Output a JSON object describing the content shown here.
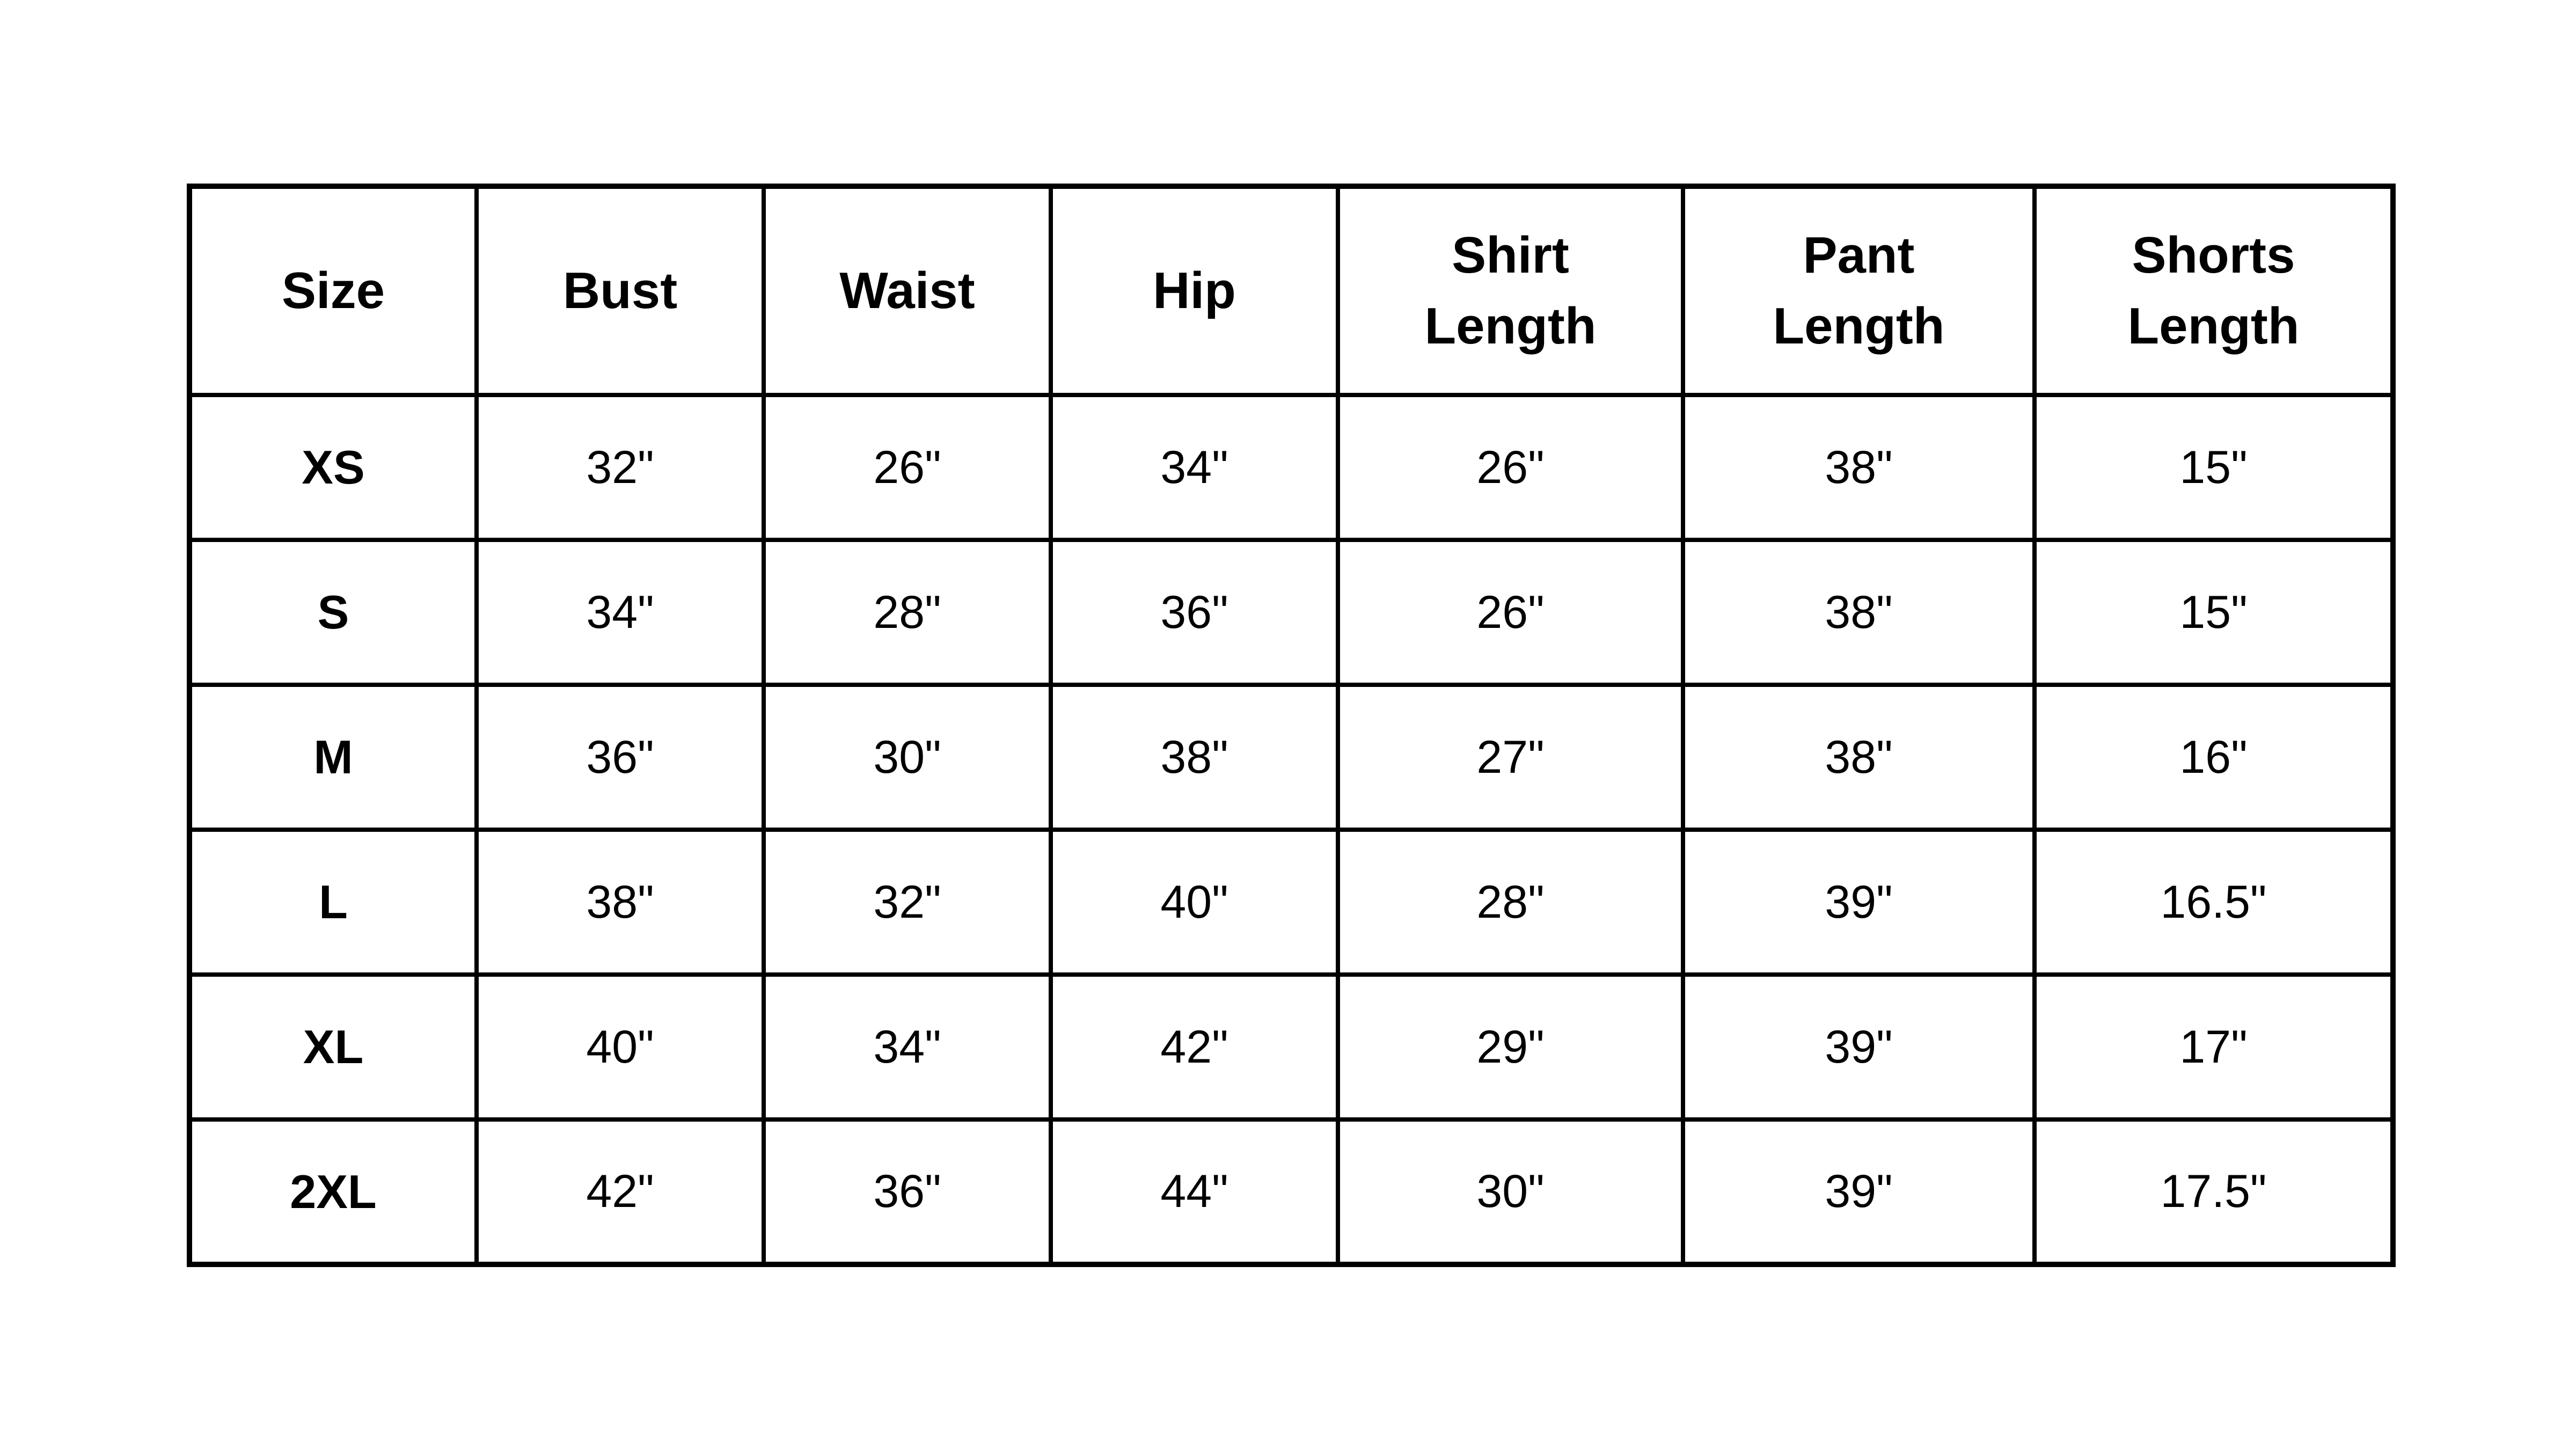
{
  "colors": {
    "text": "#000000",
    "border": "#000000",
    "background": "#ffffff"
  },
  "chart_data": {
    "type": "table",
    "columns": [
      "Size",
      "Bust",
      "Waist",
      "Hip",
      "Shirt Length",
      "Pant Length",
      "Shorts Length"
    ],
    "rows": [
      [
        "XS",
        "32\"",
        "26\"",
        "34\"",
        "26\"",
        "38\"",
        "15\""
      ],
      [
        "S",
        "34\"",
        "28\"",
        "36\"",
        "26\"",
        "38\"",
        "15\""
      ],
      [
        "M",
        "36\"",
        "30\"",
        "38\"",
        "27\"",
        "38\"",
        "16\""
      ],
      [
        "L",
        "38\"",
        "32\"",
        "40\"",
        "28\"",
        "39\"",
        "16.5\""
      ],
      [
        "XL",
        "40\"",
        "34\"",
        "42\"",
        "29\"",
        "39\"",
        "17\""
      ],
      [
        "2XL",
        "42\"",
        "36\"",
        "44\"",
        "30\"",
        "39\"",
        "17.5\""
      ]
    ]
  }
}
